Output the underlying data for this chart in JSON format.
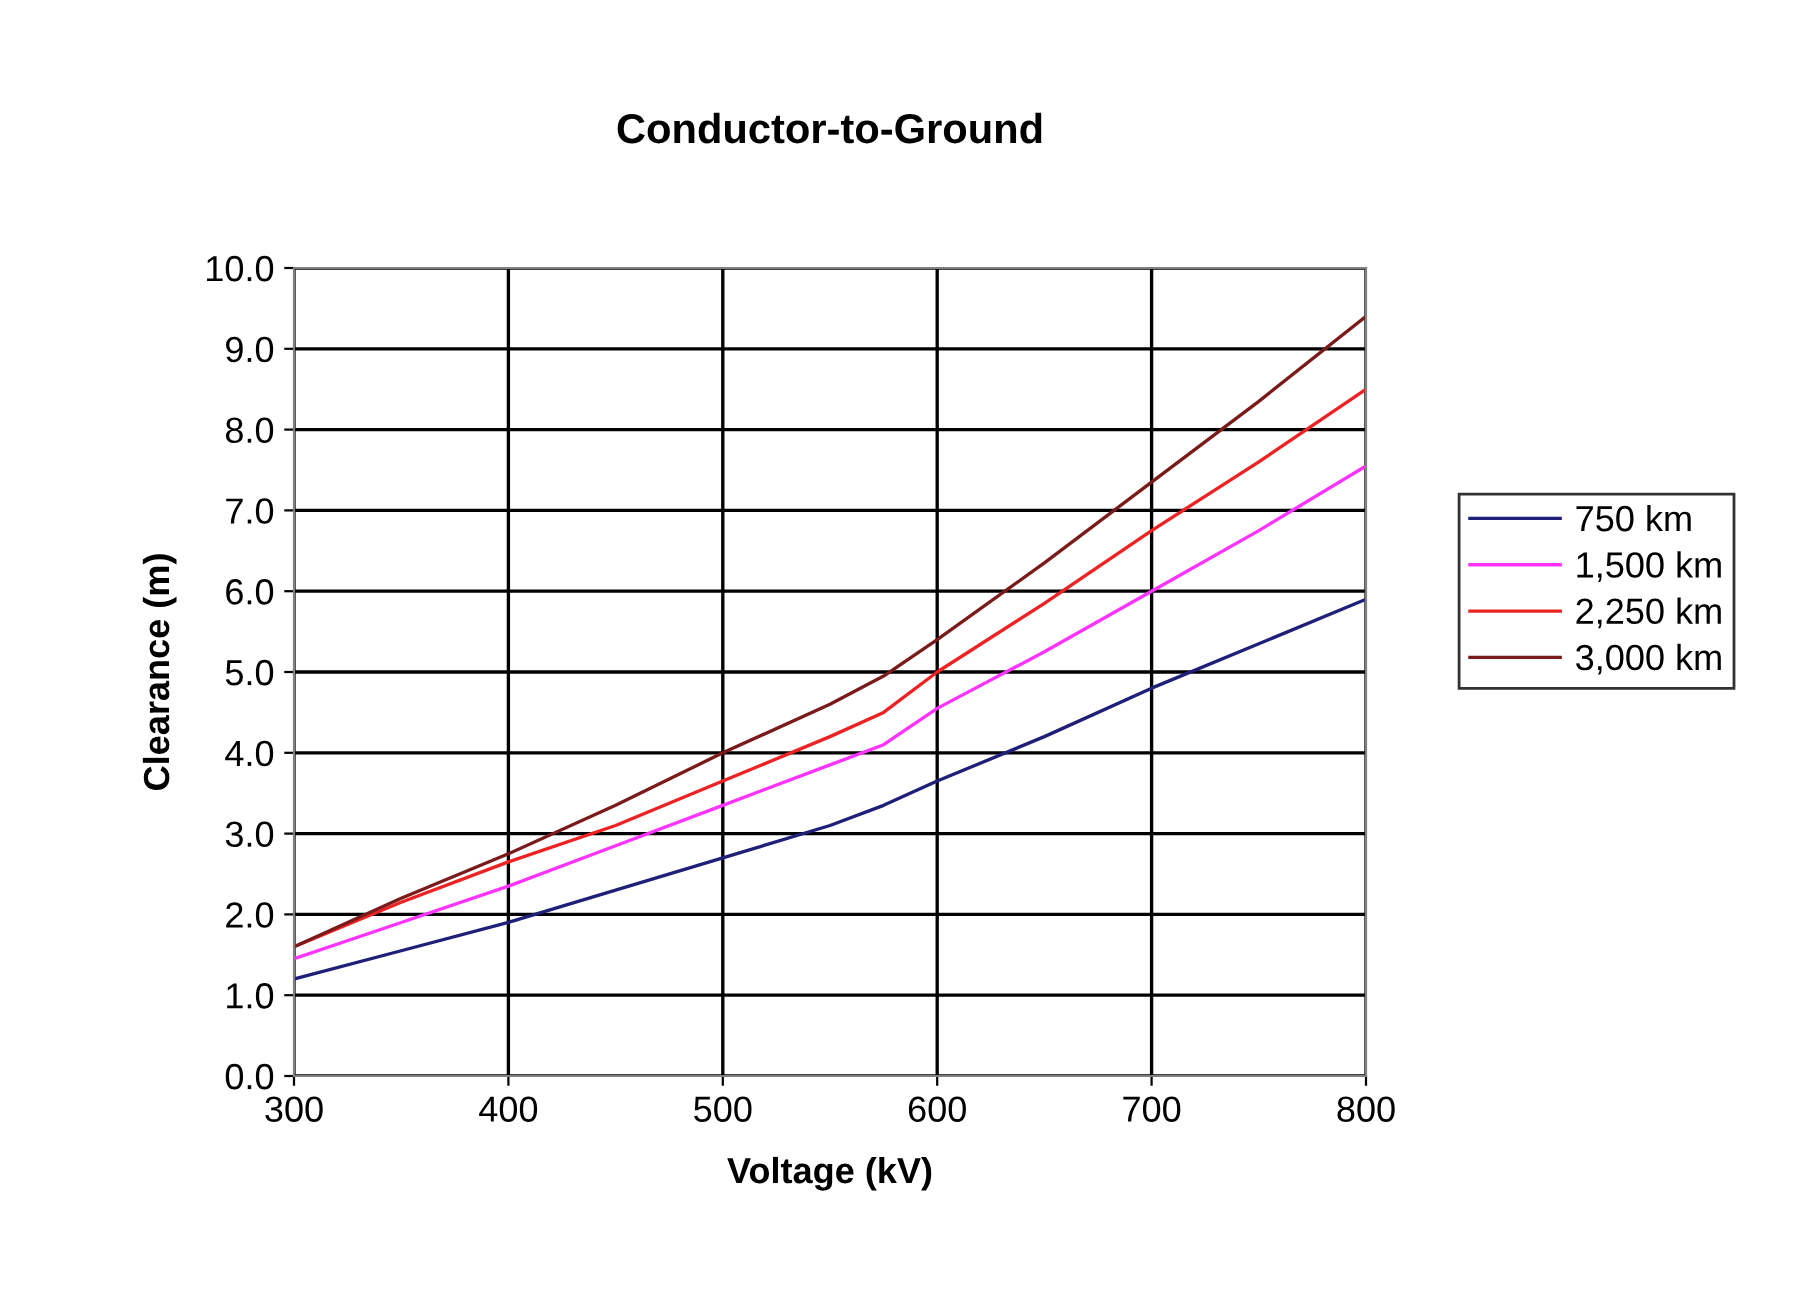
{
  "chart_data": {
    "type": "line",
    "title": "Conductor-to-Ground",
    "xlabel": "Voltage (kV)",
    "ylabel": "Clearance (m)",
    "xlim": [
      300,
      800
    ],
    "xticks": [
      300,
      400,
      500,
      600,
      700,
      800
    ],
    "ylim": [
      0,
      10
    ],
    "yticks": [
      {
        "value": 0,
        "label": "0.0"
      },
      {
        "value": 1,
        "label": "1.0"
      },
      {
        "value": 2,
        "label": "2.0"
      },
      {
        "value": 3,
        "label": "3.0"
      },
      {
        "value": 4,
        "label": "4.0"
      },
      {
        "value": 5,
        "label": "5.0"
      },
      {
        "value": 6,
        "label": "6.0"
      },
      {
        "value": 7,
        "label": "7.0"
      },
      {
        "value": 8,
        "label": "8.0"
      },
      {
        "value": 9,
        "label": "9.0"
      },
      {
        "value": 10,
        "label": "10.0"
      }
    ],
    "grid": true,
    "legend": "right",
    "marker": "none",
    "line_style": "solid",
    "x": [
      300,
      350,
      400,
      450,
      500,
      550,
      575,
      600,
      650,
      700,
      750,
      800
    ],
    "series": [
      {
        "name": "750 km",
        "color": "#1f1f7a",
        "values": [
          1.2,
          1.55,
          1.9,
          2.3,
          2.7,
          3.1,
          3.35,
          3.65,
          4.2,
          4.8,
          5.35,
          5.9
        ]
      },
      {
        "name": "1,500 km",
        "color": "#ff33ff",
        "values": [
          1.45,
          1.9,
          2.35,
          2.85,
          3.35,
          3.85,
          4.1,
          4.55,
          5.25,
          6.0,
          6.75,
          7.55
        ]
      },
      {
        "name": "2,250 km",
        "color": "#ee2222",
        "values": [
          1.6,
          2.15,
          2.65,
          3.1,
          3.65,
          4.2,
          4.5,
          5.0,
          5.85,
          6.75,
          7.6,
          8.5
        ]
      },
      {
        "name": "3,000 km",
        "color": "#7a1a1a",
        "values": [
          1.6,
          2.2,
          2.75,
          3.35,
          4.0,
          4.6,
          4.95,
          5.4,
          6.35,
          7.35,
          8.35,
          9.4
        ]
      }
    ]
  }
}
